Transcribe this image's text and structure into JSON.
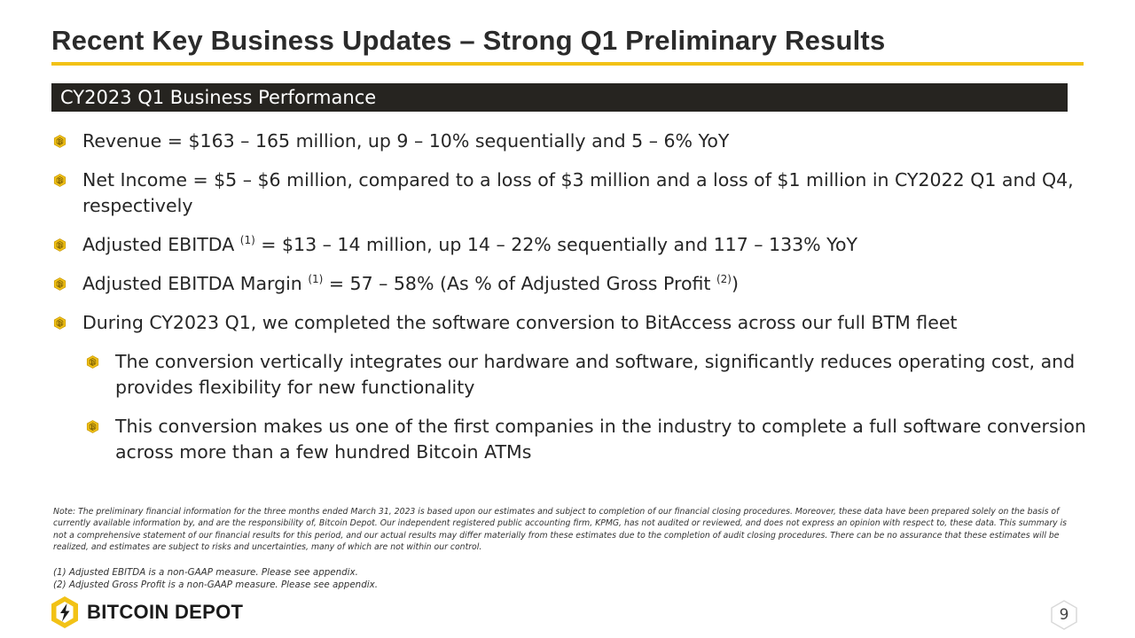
{
  "title": "Recent Key Business Updates – Strong Q1 Preliminary Results",
  "section_header": "CY2023 Q1 Business Performance",
  "bullets": {
    "revenue": "Revenue = $163 – 165 million, up 9 – 10% sequentially and 5 – 6% YoY",
    "net_income": "Net Income = $5 – $6 million, compared to a loss of $3 million and a loss of $1 million in CY2022 Q1 and Q4, respectively",
    "ebitda_pre": "Adjusted EBITDA ",
    "ebitda_sup": "(1)",
    "ebitda_post": " = $13 – 14 million, up 14 – 22% sequentially and 117 – 133% YoY",
    "margin_pre": "Adjusted EBITDA Margin ",
    "margin_sup1": "(1)",
    "margin_mid": " = 57 – 58% (As % of Adjusted Gross Profit ",
    "margin_sup2": "(2)",
    "margin_post": ")",
    "conversion": "During CY2023 Q1, we completed the software conversion to BitAccess across our full BTM fleet",
    "sub_1": "The conversion vertically integrates our hardware and software, significantly reduces operating cost, and provides flexibility for new functionality",
    "sub_2": "This conversion makes us one of the first companies in the industry to complete a full software conversion across more than a few hundred Bitcoin ATMs"
  },
  "note": "Note: The preliminary financial information for the three months ended March 31, 2023 is based upon our estimates and subject to completion of our financial closing procedures. Moreover, these data have been prepared solely on the basis of currently available information by, and are the responsibility of, Bitcoin Depot. Our independent registered public accounting firm, KPMG, has not audited or reviewed, and does not express an opinion with respect to, these data. This summary is not a comprehensive statement of our financial results for this period, and our actual results may differ materially from these estimates due to the completion of audit closing procedures. There can be no assurance that these estimates will be realized, and estimates are subject to risks and uncertainties, many of which are not within our control.",
  "footnotes": [
    "(1)  Adjusted EBITDA is a non-GAAP measure. Please see appendix.",
    "(2)  Adjusted Gross Profit is a non-GAAP measure. Please see appendix."
  ],
  "logo_text": "BITCOIN DEPOT",
  "page_number": "9",
  "colors": {
    "accent": "#f2c216",
    "header_bar": "#262420",
    "text": "#262626"
  },
  "icons": {
    "bullet": "hexagon-coin-icon",
    "logo": "bitcoin-depot-hexagon-logo"
  }
}
